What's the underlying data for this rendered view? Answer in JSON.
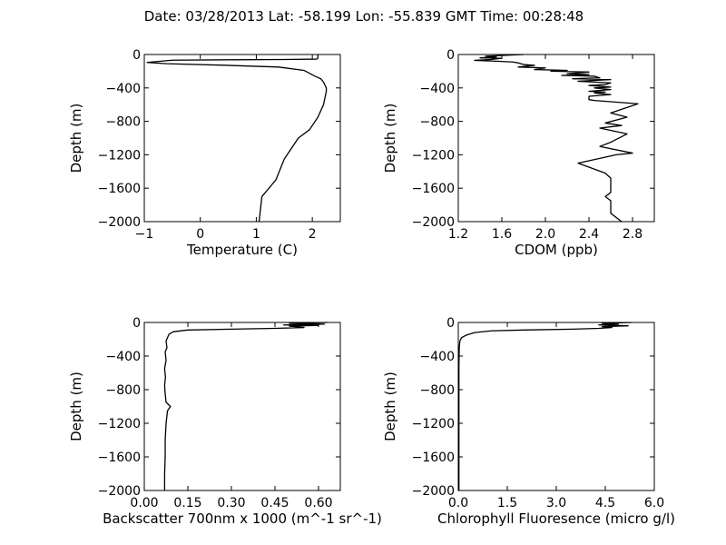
{
  "suptitle": "Date: 03/28/2013  Lat:  -58.199 Lon:  -55.839  GMT Time: 00:28:48",
  "chart_data": [
    {
      "type": "line",
      "xlabel": "Temperature (C)",
      "ylabel": "Depth (m)",
      "xlim": [
        -1,
        2.5
      ],
      "ylim": [
        -2000,
        0
      ],
      "xticks": [
        "−1",
        "0",
        "1",
        "2"
      ],
      "yticks": [
        "0",
        "−400",
        "−800",
        "−1200",
        "−1600",
        "−2000"
      ],
      "grid": false,
      "series": [
        {
          "x": [
            2.1,
            2.1,
            2.08,
            1.5,
            0.5,
            -0.5,
            -0.95,
            -0.6,
            0.5,
            1.4,
            1.85,
            2.05,
            2.15,
            2.2,
            2.25,
            2.25,
            2.2,
            2.1,
            1.95,
            1.75,
            1.5,
            1.35,
            1.1,
            1.05
          ],
          "y": [
            0,
            -40,
            -55,
            -60,
            -63,
            -68,
            -95,
            -110,
            -130,
            -150,
            -190,
            -260,
            -290,
            -330,
            -400,
            -440,
            -600,
            -750,
            -900,
            -1000,
            -1250,
            -1500,
            -1700,
            -2000
          ]
        }
      ]
    },
    {
      "type": "line",
      "xlabel": "CDOM (ppb)",
      "ylabel": "Depth (m)",
      "xlim": [
        1.2,
        3.0
      ],
      "ylim": [
        -2000,
        0
      ],
      "xticks": [
        "1.2",
        "1.6",
        "2.0",
        "2.4",
        "2.8"
      ],
      "yticks": [
        "0",
        "−400",
        "−800",
        "−1200",
        "−1600",
        "−2000"
      ],
      "grid": false,
      "series": [
        {
          "x": [
            1.8,
            1.45,
            1.55,
            1.4,
            1.6,
            1.5,
            1.35,
            1.55,
            1.7,
            1.75,
            1.8,
            1.9,
            1.75,
            2.0,
            1.9,
            2.2,
            2.05,
            2.4,
            2.2,
            2.4,
            2.15,
            2.45,
            2.5,
            2.25,
            2.6,
            2.3,
            2.45,
            2.6,
            2.55,
            2.4,
            2.6,
            2.45,
            2.6,
            2.4,
            2.55,
            2.45,
            2.6,
            2.4,
            2.4,
            2.45,
            2.85,
            2.6,
            2.75,
            2.55,
            2.7,
            2.5,
            2.75,
            2.6,
            2.5,
            2.8,
            2.65,
            2.3,
            2.55,
            2.6,
            2.6,
            2.55,
            2.6,
            2.6,
            2.7
          ],
          "y": [
            0,
            -20,
            -30,
            -40,
            -45,
            -60,
            -70,
            -80,
            -90,
            -100,
            -120,
            -130,
            -150,
            -160,
            -180,
            -190,
            -200,
            -210,
            -230,
            -240,
            -250,
            -260,
            -280,
            -290,
            -300,
            -320,
            -330,
            -340,
            -360,
            -370,
            -390,
            -400,
            -420,
            -440,
            -450,
            -460,
            -480,
            -500,
            -540,
            -550,
            -590,
            -700,
            -750,
            -820,
            -850,
            -880,
            -950,
            -1050,
            -1100,
            -1180,
            -1200,
            -1300,
            -1420,
            -1480,
            -1650,
            -1700,
            -1750,
            -1900,
            -2000
          ]
        }
      ]
    },
    {
      "type": "line",
      "xlabel": "Backscatter 700nm x 1000 (m^-1 sr^-1)",
      "ylabel": "Depth (m)",
      "xlim": [
        0,
        0.675
      ],
      "ylim": [
        -2000,
        0
      ],
      "xticks": [
        "0.00",
        "0.15",
        "0.30",
        "0.45",
        "0.60"
      ],
      "yticks": [
        "0",
        "−400",
        "−800",
        "−1200",
        "−1600",
        "−2000"
      ],
      "grid": false,
      "series": [
        {
          "x": [
            0.63,
            0.5,
            0.62,
            0.48,
            0.6,
            0.5,
            0.55,
            0.45,
            0.3,
            0.15,
            0.1,
            0.085,
            0.08,
            0.075,
            0.078,
            0.072,
            0.075,
            0.07,
            0.073,
            0.07,
            0.072,
            0.075,
            0.09,
            0.08,
            0.075,
            0.072,
            0.072,
            0.07,
            0.07
          ],
          "y": [
            0,
            -10,
            -20,
            -30,
            -35,
            -45,
            -60,
            -70,
            -80,
            -90,
            -110,
            -140,
            -180,
            -220,
            -300,
            -350,
            -450,
            -550,
            -650,
            -750,
            -850,
            -950,
            -1000,
            -1050,
            -1200,
            -1400,
            -1600,
            -1800,
            -2000
          ]
        }
      ]
    },
    {
      "type": "line",
      "xlabel": "Chlorophyll Fluoresence (micro g/l)",
      "ylabel": "Depth (m)",
      "xlim": [
        0,
        6.0
      ],
      "ylim": [
        -2000,
        0
      ],
      "xticks": [
        "0.0",
        "1.5",
        "3.0",
        "4.5",
        "6.0"
      ],
      "yticks": [
        "0",
        "−400",
        "−800",
        "−1200",
        "−1600",
        "−2000"
      ],
      "grid": false,
      "series": [
        {
          "x": [
            5.3,
            4.4,
            4.9,
            4.3,
            5.2,
            4.4,
            4.7,
            4.3,
            3.5,
            2.0,
            1.0,
            0.5,
            0.25,
            0.1,
            0.05,
            0.03,
            0.02,
            0.02
          ],
          "y": [
            0,
            -10,
            -20,
            -30,
            -40,
            -50,
            -60,
            -70,
            -80,
            -90,
            -100,
            -120,
            -150,
            -180,
            -220,
            -300,
            -500,
            -2000
          ]
        }
      ]
    }
  ]
}
